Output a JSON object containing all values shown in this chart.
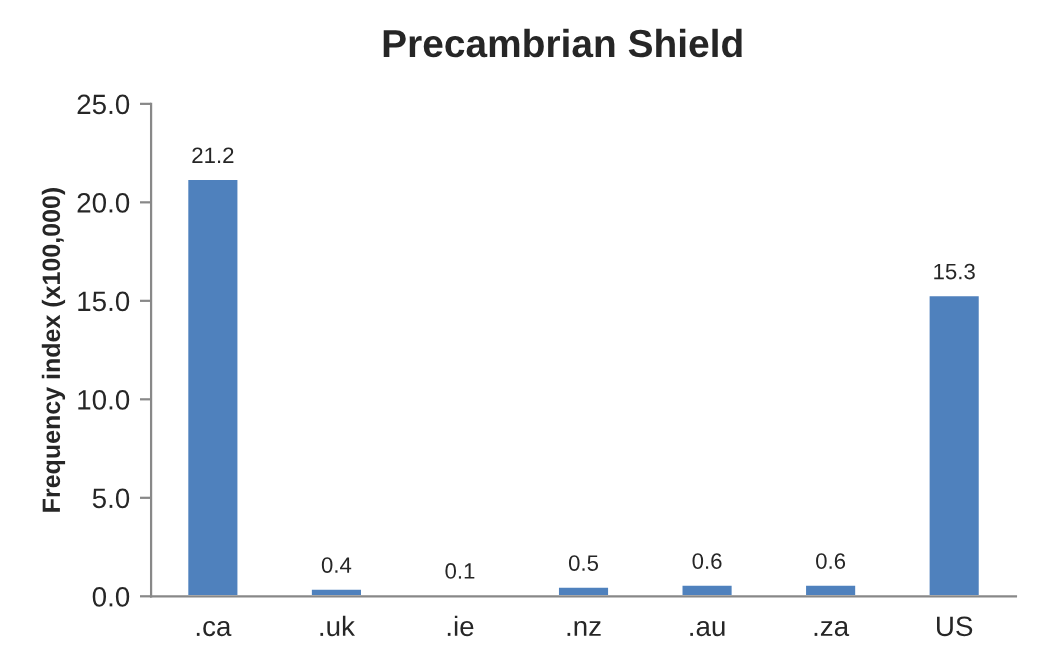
{
  "chart_data": {
    "type": "bar",
    "title": "Precambrian Shield",
    "ylabel": "Frequency index (x100,000)",
    "categories": [
      ".ca",
      ".uk",
      ".ie",
      ".nz",
      ".au",
      ".za",
      "US"
    ],
    "values": [
      21.2,
      0.4,
      0.1,
      0.5,
      0.6,
      0.6,
      15.3
    ],
    "color": "#4f81bd",
    "ylim": [
      0,
      25
    ],
    "yticks": [
      {
        "value": 0,
        "label": "0.0"
      },
      {
        "value": 5,
        "label": "5.0"
      },
      {
        "value": 10,
        "label": "10.0"
      },
      {
        "value": 15,
        "label": "15.0"
      },
      {
        "value": 20,
        "label": "20.0"
      },
      {
        "value": 25,
        "label": "25.0"
      }
    ],
    "data_labels": true,
    "grid": false,
    "legend": false
  }
}
